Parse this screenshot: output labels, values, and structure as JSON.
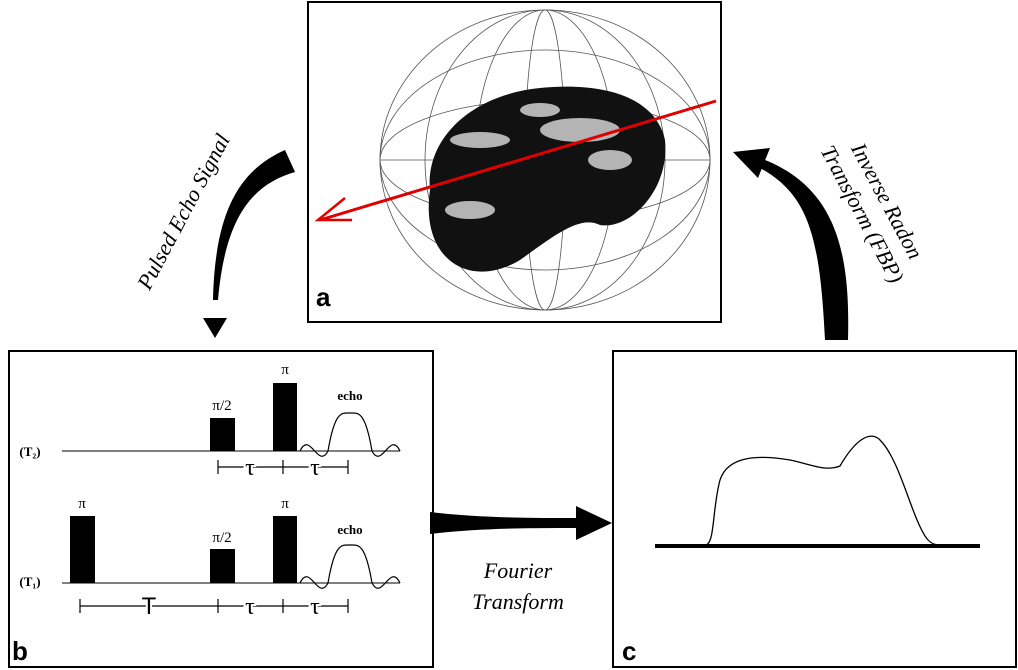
{
  "panel_a": {
    "label": "a"
  },
  "panel_b": {
    "label": "b",
    "sequences": [
      {
        "name": "(T₂)",
        "pulses": [
          "π/2",
          "π"
        ],
        "echo": "echo",
        "intervals": [
          "τ",
          "τ"
        ]
      },
      {
        "name": "(T₁)",
        "pulses": [
          "π",
          "π/2",
          "π"
        ],
        "echo": "echo",
        "intervals": [
          "T",
          "τ",
          "τ"
        ]
      }
    ]
  },
  "panel_c": {
    "label": "c"
  },
  "arrows": [
    {
      "lines": [
        "Pulsed Echo Signal"
      ]
    },
    {
      "lines": [
        "Inverse Radon",
        "Transform (FBP)"
      ]
    },
    {
      "lines": [
        "Fourier",
        "Transform"
      ]
    }
  ]
}
